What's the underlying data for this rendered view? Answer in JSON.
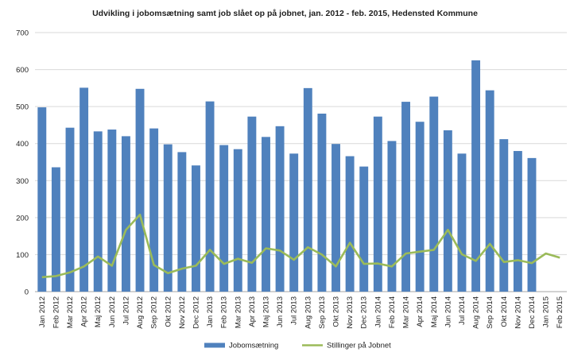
{
  "chart_data": {
    "type": "bar",
    "title": "Udvikling i jobomsætning samt job slået op på jobnet, jan. 2012 - feb. 2015, Hedensted Kommune",
    "xlabel": "",
    "ylabel": "",
    "ylim": [
      0,
      700
    ],
    "yticks": [
      "0",
      "100",
      "200",
      "300",
      "400",
      "500",
      "600",
      "700"
    ],
    "grid": true,
    "legend_position": "bottom",
    "categories": [
      "Jan 2012",
      "Feb 2012",
      "Mar 2012",
      "Apr 2012",
      "Maj 2012",
      "Jun 2012",
      "Jul 2012",
      "Aug 2012",
      "Sep 2012",
      "Okt 2012",
      "Nov 2012",
      "Dec 2012",
      "Jan 2013",
      "Feb 2013",
      "Mar 2013",
      "Apr 2013",
      "Maj 2013",
      "Jun 2013",
      "Jul 2013",
      "Aug 2013",
      "Sep 2013",
      "Okt 2013",
      "Nov 2013",
      "Dec 2013",
      "Jan 2014",
      "Feb 2014",
      "Mar 2014",
      "Apr 2014",
      "Maj 2014",
      "Jun 2014",
      "Jul 2014",
      "Aug 2014",
      "Sep 2014",
      "Okt 2014",
      "Nov 2014",
      "Dec 2014",
      "Jan 2015",
      "Feb 2015"
    ],
    "series": [
      {
        "name": "Jobomsætning",
        "kind": "bar",
        "color": "#4f81bd",
        "values": [
          498,
          336,
          443,
          551,
          433,
          438,
          420,
          548,
          441,
          398,
          377,
          341,
          514,
          396,
          385,
          473,
          418,
          447,
          373,
          550,
          481,
          399,
          366,
          338,
          473,
          407,
          513,
          459,
          527,
          436,
          373,
          625,
          544,
          412,
          380,
          361,
          null,
          null
        ]
      },
      {
        "name": "Stillinger på Jobnet",
        "kind": "line",
        "color": "#9bbb59",
        "values": [
          39,
          42,
          52,
          68,
          95,
          70,
          167,
          208,
          72,
          50,
          62,
          70,
          113,
          75,
          89,
          78,
          117,
          111,
          86,
          120,
          100,
          68,
          132,
          75,
          76,
          68,
          103,
          108,
          113,
          167,
          101,
          83,
          129,
          80,
          85,
          77,
          103,
          92
        ]
      }
    ]
  }
}
